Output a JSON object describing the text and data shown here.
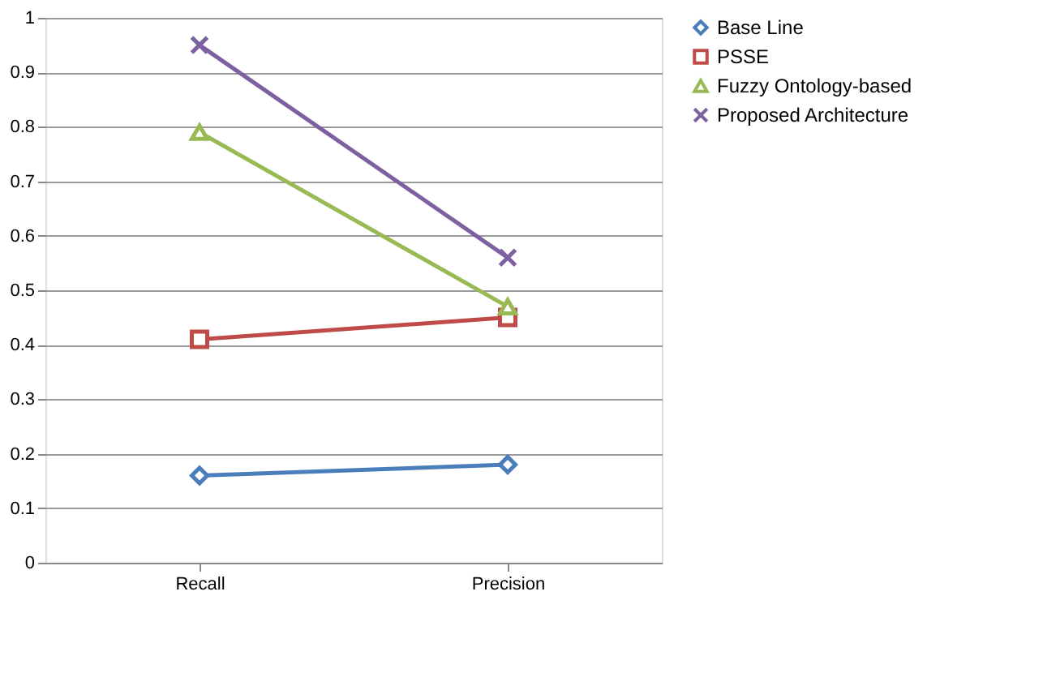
{
  "chart_data": {
    "type": "line",
    "categories": [
      "Recall",
      "Precision"
    ],
    "series": [
      {
        "name": "Base Line",
        "color": "#4a7ebb",
        "marker": "diamond",
        "values": [
          0.16,
          0.18
        ]
      },
      {
        "name": "PSSE",
        "color": "#be4b48",
        "marker": "square",
        "values": [
          0.41,
          0.45
        ]
      },
      {
        "name": "Fuzzy Ontology-based",
        "color": "#98b954",
        "marker": "triangle",
        "values": [
          0.79,
          0.47
        ]
      },
      {
        "name": "Proposed Architecture",
        "color": "#7d60a0",
        "marker": "cross",
        "values": [
          0.95,
          0.56
        ]
      }
    ],
    "ylim": [
      0,
      1
    ],
    "yticks": [
      0,
      0.1,
      0.2,
      0.3,
      0.4,
      0.5,
      0.6,
      0.7,
      0.8,
      0.9,
      1
    ],
    "grid": "y",
    "legend": "right",
    "line_style": "solid"
  }
}
